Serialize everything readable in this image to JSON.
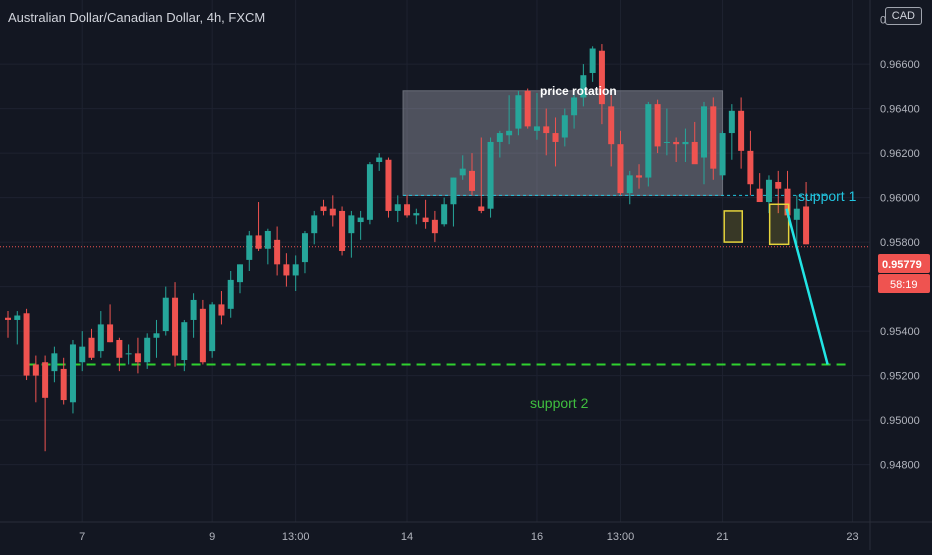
{
  "header": {
    "symbol_title": "Australian Dollar/Canadian Dollar, 4h, FXCM",
    "currency_badge": "CAD"
  },
  "price_axis": {
    "partial_top_label": "0.96800",
    "current_price_label": "0.95779",
    "countdown_label": "58:19"
  },
  "annotations": {
    "rotation_label": "price rotation",
    "support1_label": "support 1",
    "support2_label": "support 2"
  },
  "colors": {
    "background": "#131722",
    "bull": "#26a69a",
    "bear": "#ef5350",
    "support1": "#22c5e0",
    "support2": "#2fd12f",
    "highlight": "#e6d43c",
    "arrow": "#22e5e5",
    "grid": "#1e2230",
    "axis_text": "#b2b5be"
  },
  "chart_data": {
    "type": "candlestick",
    "title": "Australian Dollar/Canadian Dollar, 4h, FXCM",
    "xlabel": "",
    "ylabel": "",
    "ylim": [
      0.947,
      0.9688
    ],
    "grid": true,
    "y_ticks": [
      0.948,
      0.95,
      0.952,
      0.954,
      0.956,
      0.958,
      0.96,
      0.962,
      0.964,
      0.966
    ],
    "x_ticks": [
      "7",
      "9",
      "13:00",
      "14",
      "16",
      "13:00",
      "21",
      "23"
    ],
    "x_tick_candle_index": [
      8,
      22,
      31,
      43,
      57,
      66,
      77,
      91
    ],
    "candles": [
      [
        0.9546,
        0.9549,
        0.9537,
        0.9545
      ],
      [
        0.9545,
        0.9549,
        0.9534,
        0.9547
      ],
      [
        0.9548,
        0.955,
        0.9518,
        0.952
      ],
      [
        0.9525,
        0.9529,
        0.9508,
        0.952
      ],
      [
        0.9526,
        0.9529,
        0.9486,
        0.951
      ],
      [
        0.9522,
        0.9533,
        0.9517,
        0.953
      ],
      [
        0.9523,
        0.9528,
        0.9507,
        0.9509
      ],
      [
        0.9508,
        0.9536,
        0.9503,
        0.9534
      ],
      [
        0.9526,
        0.954,
        0.9522,
        0.9533
      ],
      [
        0.9537,
        0.9541,
        0.9527,
        0.9528
      ],
      [
        0.9531,
        0.9549,
        0.9528,
        0.9543
      ],
      [
        0.9543,
        0.9552,
        0.9535,
        0.9535
      ],
      [
        0.9536,
        0.9537,
        0.9522,
        0.9528
      ],
      [
        0.953,
        0.9534,
        0.9525,
        0.953
      ],
      [
        0.953,
        0.9537,
        0.9521,
        0.9526
      ],
      [
        0.9526,
        0.9539,
        0.9523,
        0.9537
      ],
      [
        0.9537,
        0.9545,
        0.9528,
        0.9539
      ],
      [
        0.954,
        0.956,
        0.9538,
        0.9555
      ],
      [
        0.9555,
        0.9562,
        0.9524,
        0.9529
      ],
      [
        0.9527,
        0.9545,
        0.9522,
        0.9544
      ],
      [
        0.9545,
        0.9557,
        0.9537,
        0.9554
      ],
      [
        0.955,
        0.9554,
        0.9525,
        0.9526
      ],
      [
        0.9531,
        0.9553,
        0.9528,
        0.9552
      ],
      [
        0.9552,
        0.9558,
        0.9543,
        0.9547
      ],
      [
        0.955,
        0.9567,
        0.9546,
        0.9563
      ],
      [
        0.9562,
        0.957,
        0.9557,
        0.957
      ],
      [
        0.9572,
        0.9585,
        0.9567,
        0.9583
      ],
      [
        0.9583,
        0.9598,
        0.9576,
        0.9577
      ],
      [
        0.9577,
        0.9586,
        0.957,
        0.9585
      ],
      [
        0.9581,
        0.9587,
        0.9565,
        0.957
      ],
      [
        0.957,
        0.9575,
        0.956,
        0.9565
      ],
      [
        0.9565,
        0.9574,
        0.9558,
        0.957
      ],
      [
        0.9571,
        0.9585,
        0.9566,
        0.9584
      ],
      [
        0.9584,
        0.9594,
        0.9579,
        0.9592
      ],
      [
        0.9596,
        0.9599,
        0.9592,
        0.9594
      ],
      [
        0.9595,
        0.9601,
        0.9587,
        0.9592
      ],
      [
        0.9594,
        0.9596,
        0.9574,
        0.9576
      ],
      [
        0.9584,
        0.9594,
        0.9573,
        0.9592
      ],
      [
        0.9589,
        0.9594,
        0.9581,
        0.9591
      ],
      [
        0.959,
        0.9616,
        0.9588,
        0.9615
      ],
      [
        0.9616,
        0.962,
        0.9612,
        0.9618
      ],
      [
        0.9617,
        0.9618,
        0.9591,
        0.9594
      ],
      [
        0.9594,
        0.9601,
        0.9589,
        0.9597
      ],
      [
        0.9597,
        0.9601,
        0.9591,
        0.9592
      ],
      [
        0.9592,
        0.9595,
        0.9588,
        0.9593
      ],
      [
        0.9591,
        0.9599,
        0.9586,
        0.9589
      ],
      [
        0.959,
        0.9594,
        0.958,
        0.9584
      ],
      [
        0.9588,
        0.96,
        0.9587,
        0.9597
      ],
      [
        0.9597,
        0.9609,
        0.9587,
        0.9609
      ],
      [
        0.961,
        0.9619,
        0.9608,
        0.9613
      ],
      [
        0.9612,
        0.962,
        0.9601,
        0.9603
      ],
      [
        0.9596,
        0.9627,
        0.9593,
        0.9594
      ],
      [
        0.9595,
        0.9627,
        0.9591,
        0.9625
      ],
      [
        0.9625,
        0.963,
        0.9618,
        0.9629
      ],
      [
        0.9628,
        0.9646,
        0.9624,
        0.963
      ],
      [
        0.9631,
        0.9648,
        0.9628,
        0.9646
      ],
      [
        0.9648,
        0.9649,
        0.9631,
        0.9632
      ],
      [
        0.963,
        0.9647,
        0.9626,
        0.9632
      ],
      [
        0.9632,
        0.964,
        0.9619,
        0.9629
      ],
      [
        0.9629,
        0.9636,
        0.9614,
        0.9625
      ],
      [
        0.9627,
        0.964,
        0.9623,
        0.9637
      ],
      [
        0.9637,
        0.9648,
        0.9631,
        0.9645
      ],
      [
        0.9645,
        0.966,
        0.9641,
        0.9655
      ],
      [
        0.9656,
        0.9668,
        0.9652,
        0.9667
      ],
      [
        0.9666,
        0.9669,
        0.9633,
        0.9642
      ],
      [
        0.9641,
        0.9646,
        0.9614,
        0.9624
      ],
      [
        0.9624,
        0.963,
        0.9601,
        0.9602
      ],
      [
        0.9602,
        0.9612,
        0.9597,
        0.961
      ],
      [
        0.961,
        0.9615,
        0.9604,
        0.9609
      ],
      [
        0.9609,
        0.9643,
        0.9605,
        0.9642
      ],
      [
        0.9642,
        0.9644,
        0.962,
        0.9623
      ],
      [
        0.9625,
        0.964,
        0.9619,
        0.9625
      ],
      [
        0.9625,
        0.9627,
        0.9616,
        0.9624
      ],
      [
        0.9624,
        0.9631,
        0.9616,
        0.9625
      ],
      [
        0.9625,
        0.9634,
        0.9616,
        0.9615
      ],
      [
        0.9618,
        0.9643,
        0.9606,
        0.9641
      ],
      [
        0.9641,
        0.9645,
        0.9608,
        0.9613
      ],
      [
        0.961,
        0.963,
        0.9608,
        0.9629
      ],
      [
        0.9629,
        0.9642,
        0.9617,
        0.9639
      ],
      [
        0.9639,
        0.9645,
        0.9613,
        0.9621
      ],
      [
        0.9621,
        0.963,
        0.9601,
        0.9606
      ],
      [
        0.9604,
        0.9611,
        0.9599,
        0.9598
      ],
      [
        0.9598,
        0.961,
        0.9593,
        0.9608
      ],
      [
        0.9607,
        0.9612,
        0.9593,
        0.9604
      ],
      [
        0.9604,
        0.9612,
        0.9591,
        0.9592
      ],
      [
        0.959,
        0.9601,
        0.9579,
        0.9595
      ],
      [
        0.9596,
        0.9607,
        0.9579,
        0.9579
      ]
    ],
    "annotations": [
      {
        "type": "rectangle",
        "label": "price rotation",
        "x_range_candle": [
          43,
          77
        ],
        "y_range": [
          0.9601,
          0.9648
        ]
      },
      {
        "type": "horizontal_line",
        "label": "support 1",
        "y": 0.9601,
        "x_start_candle": 43,
        "style": "dashed"
      },
      {
        "type": "horizontal_line",
        "label": "support 2",
        "y": 0.9525,
        "x_start_candle": 2,
        "style": "dashed"
      },
      {
        "type": "horizontal_line",
        "label": "current price",
        "y": 0.95779,
        "style": "dotted"
      },
      {
        "type": "highlight_box",
        "x_range_candle": [
          77.5,
          78.8
        ],
        "y_range": [
          0.958,
          0.9594
        ]
      },
      {
        "type": "highlight_box",
        "x_range_candle": [
          82.4,
          83.8
        ],
        "y_range": [
          0.9579,
          0.9597
        ]
      },
      {
        "type": "arrow_line",
        "from_candle": 84,
        "from_y": 0.9595,
        "to_candle": 88,
        "to_y": 0.9525
      }
    ]
  }
}
